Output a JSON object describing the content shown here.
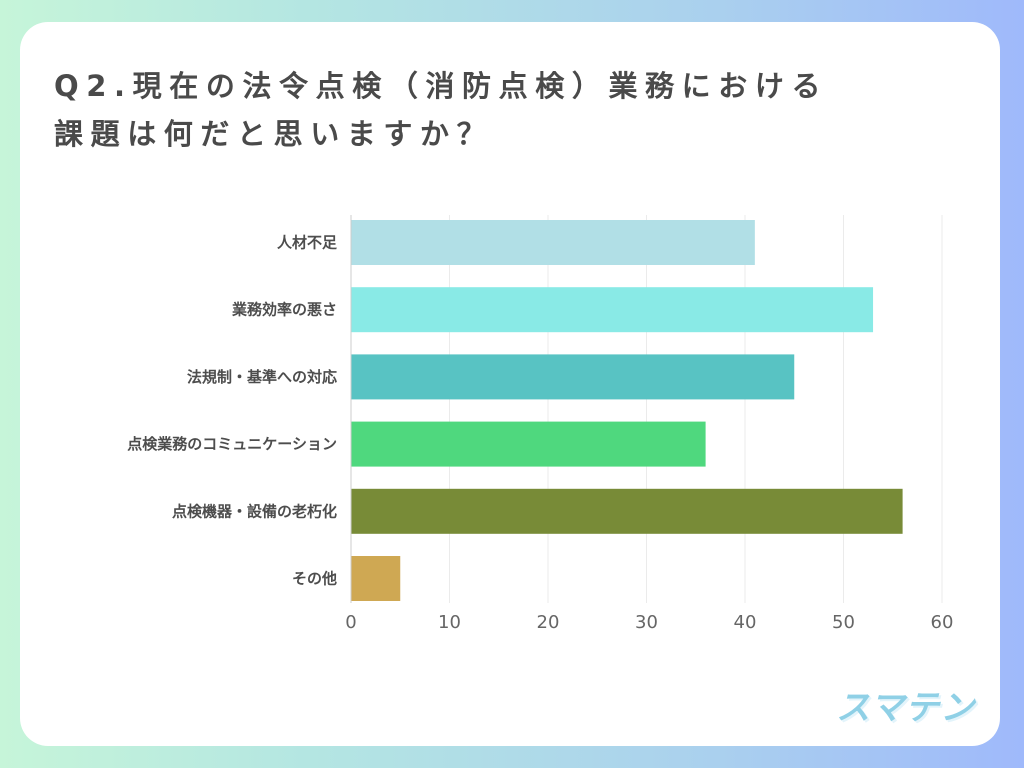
{
  "title_lines": [
    "Q2.現在の法令点検（消防点検）業務における",
    "課題は何だと思いますか？"
  ],
  "brand": "スマテン",
  "chart_data": {
    "type": "bar",
    "orientation": "horizontal",
    "categories": [
      "人材不足",
      "業務効率の悪さ",
      "法規制・基準への対応",
      "点検業務のコミュニケーション",
      "点検機器・設備の老朽化",
      "その他"
    ],
    "values": [
      41,
      53,
      45,
      36,
      56,
      5
    ],
    "colors": [
      "#b1dfe6",
      "#89eae6",
      "#58c3c3",
      "#4fd87e",
      "#788b37",
      "#cfa853"
    ],
    "xlim": [
      0,
      60
    ],
    "xticks": [
      0,
      10,
      20,
      30,
      40,
      50,
      60
    ],
    "grid": true,
    "title": "",
    "xlabel": "",
    "ylabel": ""
  }
}
